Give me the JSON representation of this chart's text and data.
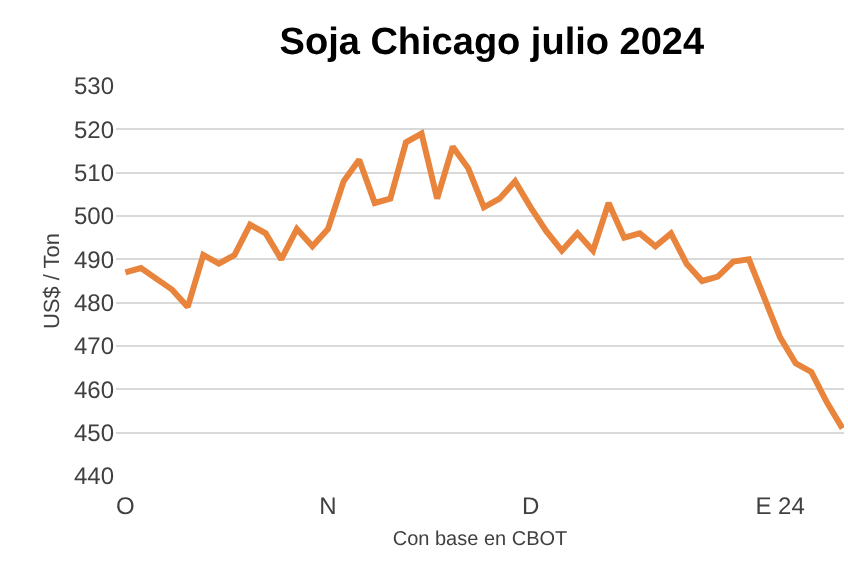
{
  "chart_data": {
    "type": "line",
    "title": "Soja Chicago julio 2024",
    "xlabel": "Con base en CBOT",
    "ylabel": "US$ / Ton",
    "categories": [
      "O",
      null,
      null,
      null,
      null,
      null,
      null,
      null,
      null,
      null,
      null,
      null,
      null,
      "N",
      null,
      null,
      null,
      null,
      null,
      null,
      null,
      null,
      null,
      null,
      null,
      null,
      "D",
      null,
      null,
      null,
      null,
      null,
      null,
      null,
      null,
      null,
      null,
      null,
      null,
      null,
      null,
      null,
      "E 24",
      null,
      null,
      null,
      null
    ],
    "series": [
      {
        "color": "#e8843c",
        "values": [
          487,
          488,
          485.5,
          483,
          479,
          491,
          489,
          491,
          498,
          496,
          490,
          497,
          493,
          497,
          508,
          513,
          503,
          504,
          517,
          519,
          504,
          516,
          511,
          502,
          504,
          508,
          502,
          496.5,
          492,
          496,
          492,
          503,
          495,
          496,
          493,
          496,
          489,
          485,
          486,
          489.5,
          490,
          481,
          472,
          466,
          464,
          457,
          451
        ]
      }
    ],
    "ylim": [
      440,
      530
    ],
    "yticks": [
      440,
      450,
      460,
      470,
      480,
      490,
      500,
      510,
      520,
      530
    ],
    "grid": "y",
    "marker": "none",
    "line_style": "solid"
  }
}
